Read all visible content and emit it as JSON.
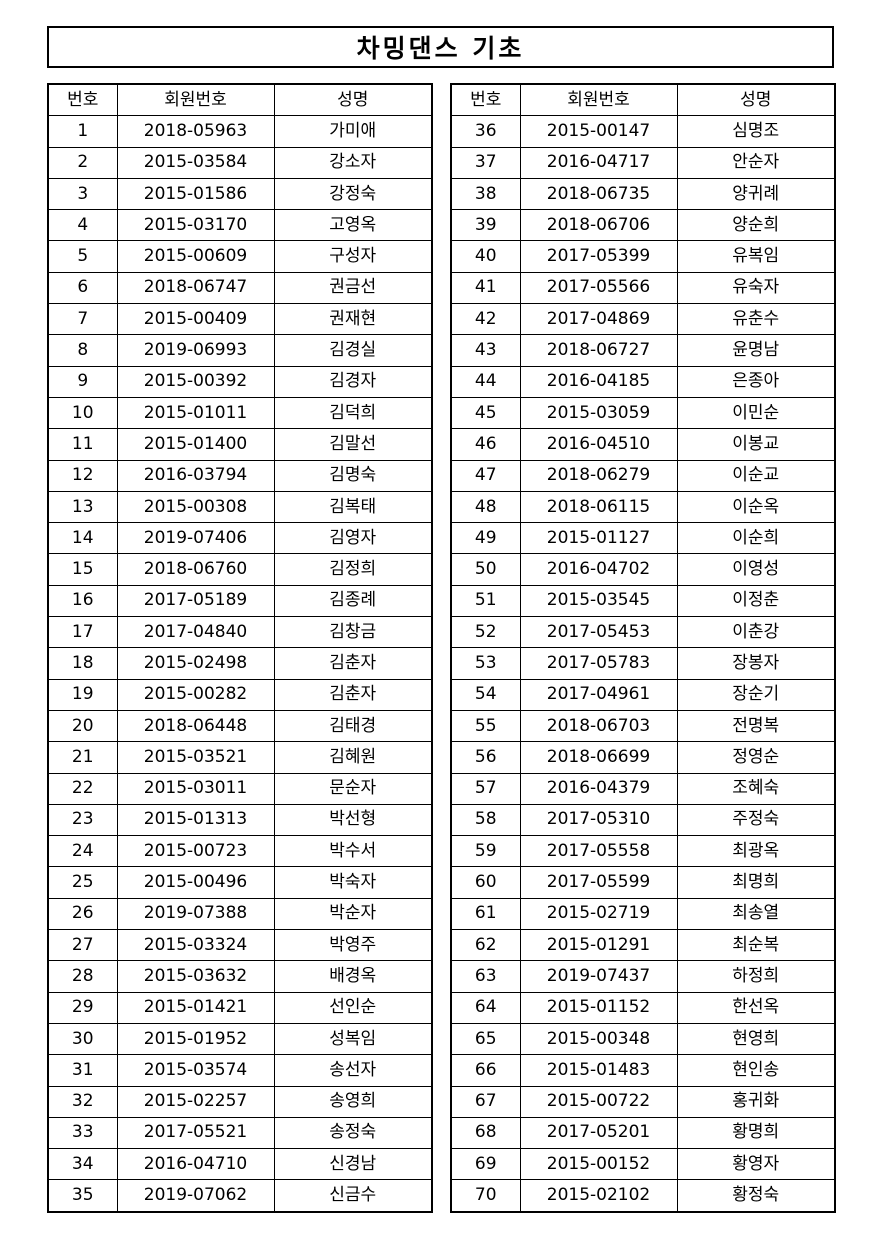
{
  "title": "차밍댄스 기초",
  "headers": [
    "번호",
    "회원번호",
    "성명"
  ],
  "left_rows": [
    [
      "1",
      "2018-05963",
      "가미애"
    ],
    [
      "2",
      "2015-03584",
      "강소자"
    ],
    [
      "3",
      "2015-01586",
      "강정숙"
    ],
    [
      "4",
      "2015-03170",
      "고영옥"
    ],
    [
      "5",
      "2015-00609",
      "구성자"
    ],
    [
      "6",
      "2018-06747",
      "권금선"
    ],
    [
      "7",
      "2015-00409",
      "권재현"
    ],
    [
      "8",
      "2019-06993",
      "김경실"
    ],
    [
      "9",
      "2015-00392",
      "김경자"
    ],
    [
      "10",
      "2015-01011",
      "김덕희"
    ],
    [
      "11",
      "2015-01400",
      "김말선"
    ],
    [
      "12",
      "2016-03794",
      "김명숙"
    ],
    [
      "13",
      "2015-00308",
      "김복태"
    ],
    [
      "14",
      "2019-07406",
      "김영자"
    ],
    [
      "15",
      "2018-06760",
      "김정희"
    ],
    [
      "16",
      "2017-05189",
      "김종례"
    ],
    [
      "17",
      "2017-04840",
      "김창금"
    ],
    [
      "18",
      "2015-02498",
      "김춘자"
    ],
    [
      "19",
      "2015-00282",
      "김춘자"
    ],
    [
      "20",
      "2018-06448",
      "김태경"
    ],
    [
      "21",
      "2015-03521",
      "김혜원"
    ],
    [
      "22",
      "2015-03011",
      "문순자"
    ],
    [
      "23",
      "2015-01313",
      "박선형"
    ],
    [
      "24",
      "2015-00723",
      "박수서"
    ],
    [
      "25",
      "2015-00496",
      "박숙자"
    ],
    [
      "26",
      "2019-07388",
      "박순자"
    ],
    [
      "27",
      "2015-03324",
      "박영주"
    ],
    [
      "28",
      "2015-03632",
      "배경옥"
    ],
    [
      "29",
      "2015-01421",
      "선인순"
    ],
    [
      "30",
      "2015-01952",
      "성복임"
    ],
    [
      "31",
      "2015-03574",
      "송선자"
    ],
    [
      "32",
      "2015-02257",
      "송영희"
    ],
    [
      "33",
      "2017-05521",
      "송정숙"
    ],
    [
      "34",
      "2016-04710",
      "신경남"
    ],
    [
      "35",
      "2019-07062",
      "신금수"
    ]
  ],
  "right_rows": [
    [
      "36",
      "2015-00147",
      "심명조"
    ],
    [
      "37",
      "2016-04717",
      "안순자"
    ],
    [
      "38",
      "2018-06735",
      "양귀례"
    ],
    [
      "39",
      "2018-06706",
      "양순희"
    ],
    [
      "40",
      "2017-05399",
      "유복임"
    ],
    [
      "41",
      "2017-05566",
      "유숙자"
    ],
    [
      "42",
      "2017-04869",
      "유춘수"
    ],
    [
      "43",
      "2018-06727",
      "윤명남"
    ],
    [
      "44",
      "2016-04185",
      "은종아"
    ],
    [
      "45",
      "2015-03059",
      "이민순"
    ],
    [
      "46",
      "2016-04510",
      "이봉교"
    ],
    [
      "47",
      "2018-06279",
      "이순교"
    ],
    [
      "48",
      "2018-06115",
      "이순옥"
    ],
    [
      "49",
      "2015-01127",
      "이순희"
    ],
    [
      "50",
      "2016-04702",
      "이영성"
    ],
    [
      "51",
      "2015-03545",
      "이정춘"
    ],
    [
      "52",
      "2017-05453",
      "이춘강"
    ],
    [
      "53",
      "2017-05783",
      "장봉자"
    ],
    [
      "54",
      "2017-04961",
      "장순기"
    ],
    [
      "55",
      "2018-06703",
      "전명복"
    ],
    [
      "56",
      "2018-06699",
      "정영순"
    ],
    [
      "57",
      "2016-04379",
      "조혜숙"
    ],
    [
      "58",
      "2017-05310",
      "주정숙"
    ],
    [
      "59",
      "2017-05558",
      "최광옥"
    ],
    [
      "60",
      "2017-05599",
      "최명희"
    ],
    [
      "61",
      "2015-02719",
      "최송열"
    ],
    [
      "62",
      "2015-01291",
      "최순복"
    ],
    [
      "63",
      "2019-07437",
      "하정희"
    ],
    [
      "64",
      "2015-01152",
      "한선옥"
    ],
    [
      "65",
      "2015-00348",
      "현영희"
    ],
    [
      "66",
      "2015-01483",
      "현인송"
    ],
    [
      "67",
      "2015-00722",
      "홍귀화"
    ],
    [
      "68",
      "2017-05201",
      "황명희"
    ],
    [
      "69",
      "2015-00152",
      "황영자"
    ],
    [
      "70",
      "2015-02102",
      "황정숙"
    ]
  ]
}
